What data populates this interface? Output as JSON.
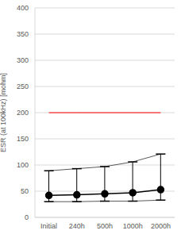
{
  "chart_data": {
    "type": "line",
    "y_label": "ESR (at 100kHz) [mohm]",
    "categories": [
      "Initial",
      "240h",
      "500h",
      "1000h",
      "2000h"
    ],
    "ylim": [
      0,
      400
    ],
    "yticks": [
      0,
      50,
      100,
      150,
      200,
      250,
      300,
      350,
      400
    ],
    "grid": true,
    "series": [
      {
        "color": "#ff0000",
        "values": [
          200,
          200,
          200,
          200,
          200
        ],
        "marker": "none"
      },
      {
        "color": "#595959",
        "values": [
          89,
          93,
          97,
          106,
          121
        ],
        "marker": "dash"
      },
      {
        "color": "#000000",
        "values": [
          42,
          43,
          45,
          47,
          53
        ],
        "marker": "circle"
      },
      {
        "color": "#595959",
        "values": [
          30,
          30,
          31,
          31,
          33
        ],
        "marker": "dash"
      }
    ]
  }
}
